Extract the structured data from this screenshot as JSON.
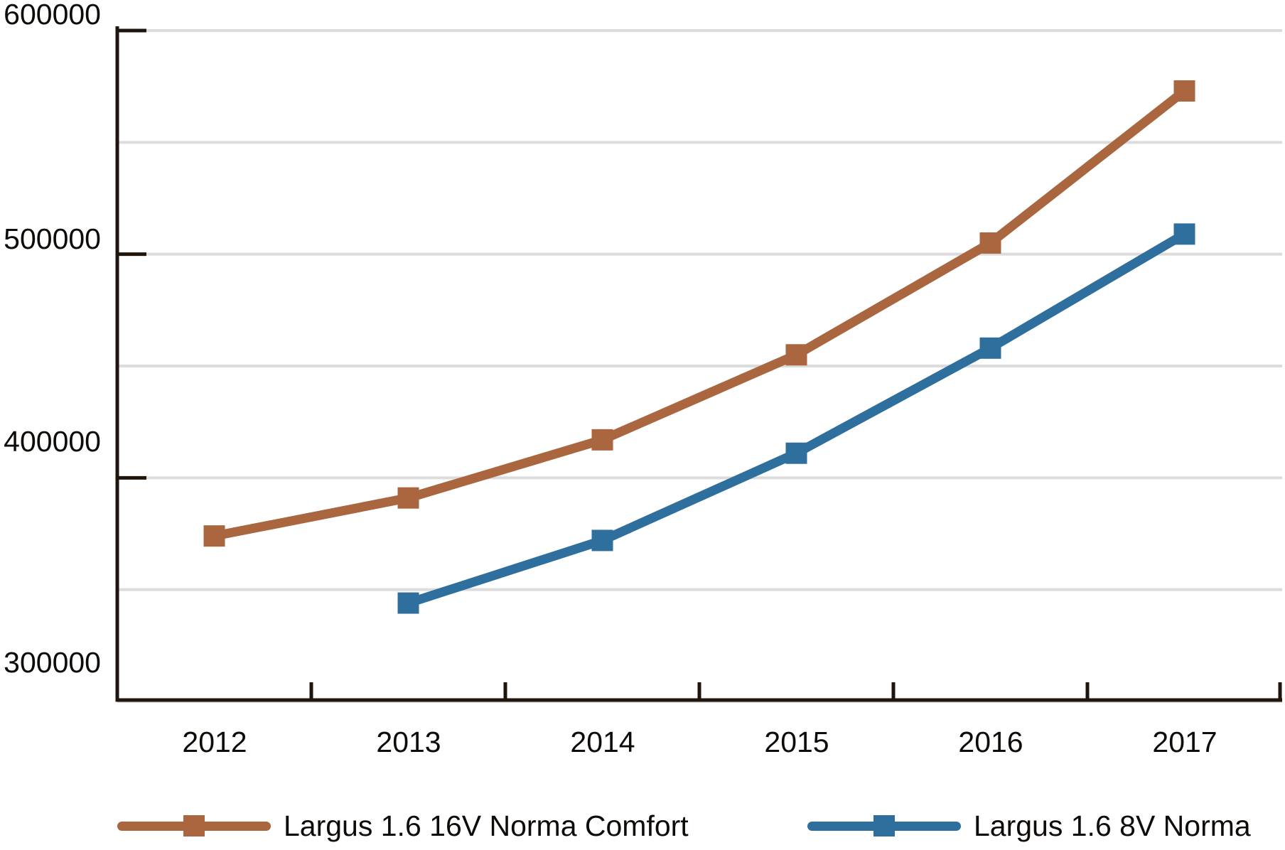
{
  "chart_data": {
    "type": "line",
    "categories": [
      "2012",
      "2013",
      "2014",
      "2015",
      "2016",
      "2017"
    ],
    "series": [
      {
        "name": "Largus 1.6 16V Norma Comfort",
        "color": "#a9663f",
        "marker": "square",
        "values": [
          374000,
          391000,
          417000,
          455000,
          505000,
          573000
        ]
      },
      {
        "name": "Largus 1.6 8V Norma",
        "color": "#2e6f9e",
        "marker": "square",
        "values": [
          null,
          344000,
          372000,
          411000,
          458000,
          509000
        ]
      }
    ],
    "title": "",
    "xlabel": "",
    "ylabel": "",
    "ylim": [
      300000,
      600000
    ],
    "ytick_interval": 100000,
    "grid_interval": 50000,
    "grid": true,
    "yticklabels_top_to_bottom": [
      "600000",
      "500000",
      "400000",
      "300000"
    ],
    "legend_position": "bottom",
    "colors": {
      "grid": "#dcdcdc",
      "axis": "#1f150c",
      "text": "#0e0b08",
      "background": "#ffffff"
    }
  }
}
